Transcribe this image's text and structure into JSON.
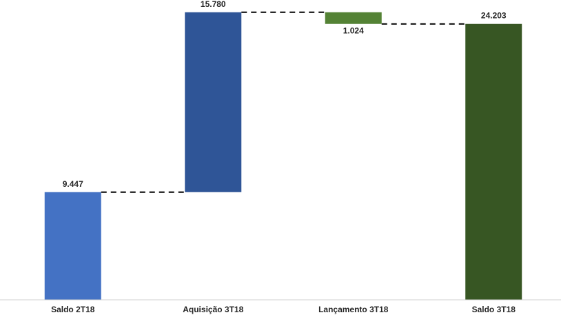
{
  "chart_data": {
    "type": "waterfall",
    "categories": [
      "Saldo 2T18",
      "Aquisição 3T18",
      "Lançamento 3T18",
      "Saldo 3T18"
    ],
    "values": [
      9447,
      15780,
      -1024,
      24203
    ],
    "value_labels": [
      "9.447",
      "15.780",
      "1.024",
      "24.203"
    ],
    "steps": [
      {
        "kind": "total",
        "start": 0,
        "end": 9447
      },
      {
        "kind": "increase",
        "start": 9447,
        "end": 25227
      },
      {
        "kind": "decrease",
        "start": 25227,
        "end": 24203
      },
      {
        "kind": "total",
        "start": 0,
        "end": 24203
      }
    ],
    "colors": [
      "#4472C4",
      "#2F5597",
      "#548235",
      "#375623"
    ],
    "connector_style": "dashed",
    "ylim": [
      0,
      26000
    ],
    "grid": false,
    "title": "",
    "xlabel": "",
    "ylabel": ""
  }
}
